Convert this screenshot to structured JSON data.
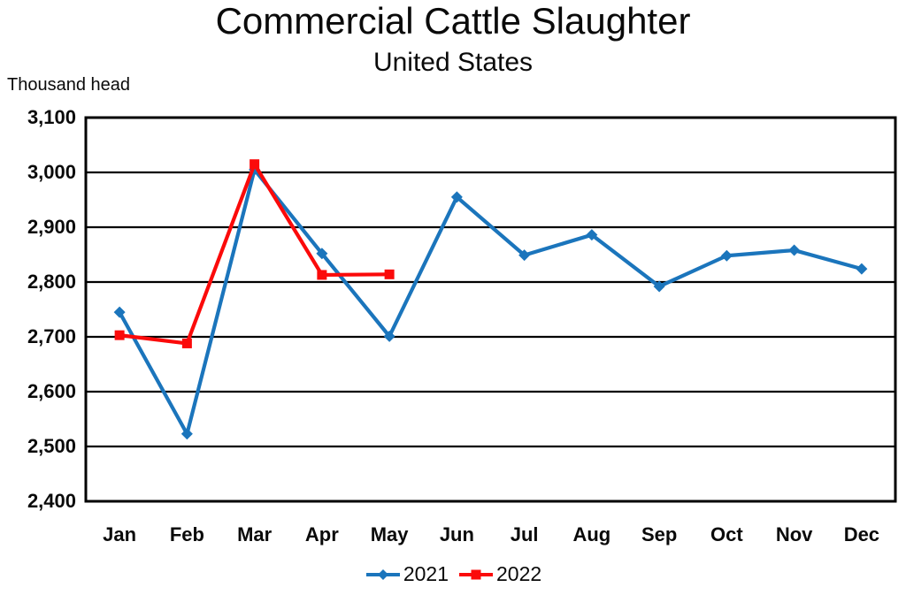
{
  "page": {
    "title": "Commercial Cattle Slaughter",
    "subtitle": "United States",
    "units_label": "Thousand head"
  },
  "chart_data": {
    "type": "line",
    "title": "Commercial Cattle Slaughter",
    "subtitle": "United States",
    "ylabel": "Thousand head",
    "xlabel": "",
    "categories": [
      "Jan",
      "Feb",
      "Mar",
      "Apr",
      "May",
      "Jun",
      "Jul",
      "Aug",
      "Sep",
      "Oct",
      "Nov",
      "Dec"
    ],
    "series": [
      {
        "name": "2021",
        "color": "#1b75bc",
        "marker": "diamond",
        "values": [
          2745,
          2523,
          3005,
          2852,
          2701,
          2955,
          2849,
          2886,
          2792,
          2848,
          2858,
          2824
        ]
      },
      {
        "name": "2022",
        "color": "#fb0a0a",
        "marker": "square",
        "values": [
          2703,
          2688,
          3015,
          2813,
          2814,
          null,
          null,
          null,
          null,
          null,
          null,
          null
        ]
      }
    ],
    "ylim": [
      2400,
      3100
    ],
    "ytick_step": 100,
    "y_tick_labels": [
      "3,100",
      "3,000",
      "2,900",
      "2,800",
      "2,700",
      "2,600",
      "2,500",
      "2,400"
    ],
    "grid": "horizontal",
    "gridline_color": "#000000",
    "border_color": "#000000",
    "legend_position": "bottom"
  }
}
